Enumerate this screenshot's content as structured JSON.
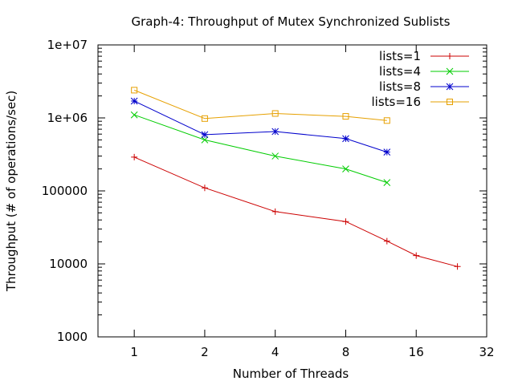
{
  "chart_data": {
    "type": "line",
    "title": "Graph-4: Throughput of Mutex Synchronized Sublists",
    "xlabel": "Number of Threads",
    "ylabel": "Throughput (# of operations/sec)",
    "x_scale": "log2",
    "y_scale": "log10",
    "xlim": [
      0.7,
      32
    ],
    "ylim": [
      1000,
      10000000
    ],
    "x_ticks": [
      {
        "value": 1,
        "label": "1"
      },
      {
        "value": 2,
        "label": "2"
      },
      {
        "value": 4,
        "label": "4"
      },
      {
        "value": 8,
        "label": "8"
      },
      {
        "value": 16,
        "label": "16"
      },
      {
        "value": 32,
        "label": "32"
      }
    ],
    "y_ticks": [
      {
        "value": 1000,
        "label": "1000"
      },
      {
        "value": 10000,
        "label": "10000"
      },
      {
        "value": 100000,
        "label": "100000"
      },
      {
        "value": 1000000,
        "label": "1e+06"
      },
      {
        "value": 10000000,
        "label": "1e+07"
      }
    ],
    "grid": false,
    "legend_position": "top-right",
    "series": [
      {
        "name": "lists=1",
        "color": "#cc0000",
        "marker": "plus",
        "x": [
          1,
          2,
          4,
          8,
          12,
          16,
          24
        ],
        "y": [
          290000,
          110000,
          52000,
          38000,
          20500,
          13000,
          9200
        ]
      },
      {
        "name": "lists=4",
        "color": "#00cc00",
        "marker": "cross",
        "x": [
          1,
          2,
          4,
          8,
          12
        ],
        "y": [
          1100000,
          500000,
          300000,
          200000,
          130000
        ]
      },
      {
        "name": "lists=8",
        "color": "#0000cc",
        "marker": "star",
        "x": [
          1,
          2,
          4,
          8,
          12
        ],
        "y": [
          1700000,
          590000,
          650000,
          520000,
          340000
        ]
      },
      {
        "name": "lists=16",
        "color": "#e6a000",
        "marker": "square",
        "x": [
          1,
          2,
          4,
          8,
          12
        ],
        "y": [
          2400000,
          980000,
          1150000,
          1050000,
          920000
        ]
      }
    ]
  }
}
